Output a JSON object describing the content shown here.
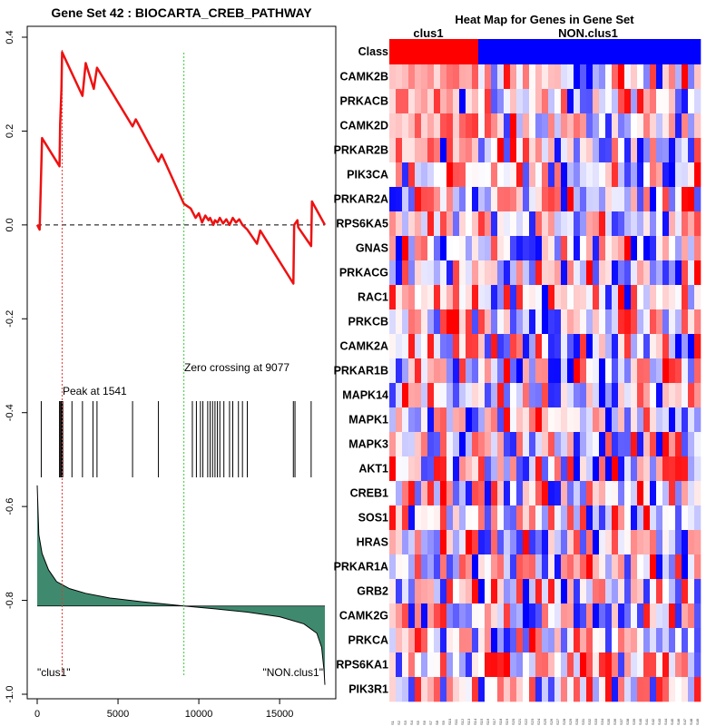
{
  "chart_data": [
    {
      "type": "line",
      "title": "Gene Set  42 : BIOCARTA_CREB_PATHWAY",
      "xlim": [
        0,
        17800
      ],
      "ylim": [
        -1.0,
        0.4
      ],
      "xticks": [
        0,
        5000,
        10000,
        15000
      ],
      "yticks": [
        -1.0,
        -0.8,
        -0.6,
        -0.4,
        -0.2,
        0.0,
        0.2,
        0.4
      ],
      "peak_label": "Peak at 1541",
      "peak_x": 1541,
      "zero_label": "Zero crossing at 9077",
      "zero_x": 9077,
      "left_phenotype": "\"clus1\"",
      "right_phenotype": "\"NON.clus1\"",
      "running_es": {
        "x": [
          0,
          150,
          300,
          1380,
          1420,
          1500,
          1541,
          2800,
          3000,
          3500,
          3700,
          5900,
          6100,
          7500,
          7700,
          9077,
          9500,
          9800,
          10000,
          10200,
          10400,
          10600,
          10700,
          10900,
          11000,
          11150,
          11300,
          11500,
          11700,
          11900,
          12100,
          12300,
          12500,
          12700,
          13000,
          13600,
          13800,
          15850,
          15900,
          16100,
          16150,
          16950,
          17000,
          17800
        ],
        "y": [
          0.0,
          -0.01,
          0.185,
          0.125,
          0.215,
          0.29,
          0.368,
          0.275,
          0.345,
          0.29,
          0.335,
          0.21,
          0.225,
          0.135,
          0.15,
          0.045,
          0.035,
          0.015,
          0.025,
          0.005,
          0.02,
          0.01,
          0.015,
          0.0,
          0.01,
          0.005,
          0.015,
          0.003,
          0.012,
          0.0,
          0.015,
          0.005,
          0.012,
          0.0,
          -0.01,
          -0.04,
          -0.012,
          -0.125,
          0.0,
          0.01,
          -0.005,
          -0.045,
          0.05,
          0.0
        ]
      },
      "hit_positions": [
        250,
        1380,
        1420,
        1480,
        1520,
        1541,
        1580,
        2150,
        2800,
        3450,
        3700,
        5900,
        7500,
        9600,
        9850,
        10100,
        10250,
        10550,
        10700,
        10850,
        11000,
        11150,
        11300,
        11550,
        11900,
        12100,
        12450,
        12700,
        13000,
        15850,
        15950,
        16950
      ],
      "ranked_metric": {
        "x": [
          0,
          100,
          300,
          700,
          1200,
          2000,
          3000,
          4500,
          6500,
          9077,
          11000,
          13000,
          15000,
          16500,
          17300,
          17600,
          17750,
          17800
        ],
        "y": [
          -0.555,
          -0.66,
          -0.7,
          -0.735,
          -0.76,
          -0.775,
          -0.785,
          -0.795,
          -0.803,
          -0.812,
          -0.818,
          -0.825,
          -0.835,
          -0.85,
          -0.87,
          -0.9,
          -0.95,
          -0.98
        ],
        "baseline": -0.812
      }
    },
    {
      "type": "heatmap",
      "title": "Heat Map for Genes in Gene Set",
      "class_row_label": "Class",
      "class_groups": [
        {
          "name": "clus1",
          "count": 14,
          "color": "#ff0000"
        },
        {
          "name": "NON.clus1",
          "count": 35,
          "color": "#0000ff"
        }
      ],
      "genes": [
        "CAMK2B",
        "PRKACB",
        "CAMK2D",
        "PRKAR2B",
        "PIK3CA",
        "PRKAR2A",
        "RPS6KA5",
        "GNAS",
        "PRKACG",
        "RAC1",
        "PRKCB",
        "CAMK2A",
        "PRKAR1B",
        "MAPK14",
        "MAPK1",
        "MAPK3",
        "AKT1",
        "CREB1",
        "SOS1",
        "HRAS",
        "PRKAR1A",
        "GRB2",
        "CAMK2G",
        "PRKCA",
        "RPS6KA1",
        "PIK3R1"
      ],
      "n_samples": 49,
      "value_range": [
        -1,
        1
      ],
      "sample_label": "S"
    }
  ]
}
